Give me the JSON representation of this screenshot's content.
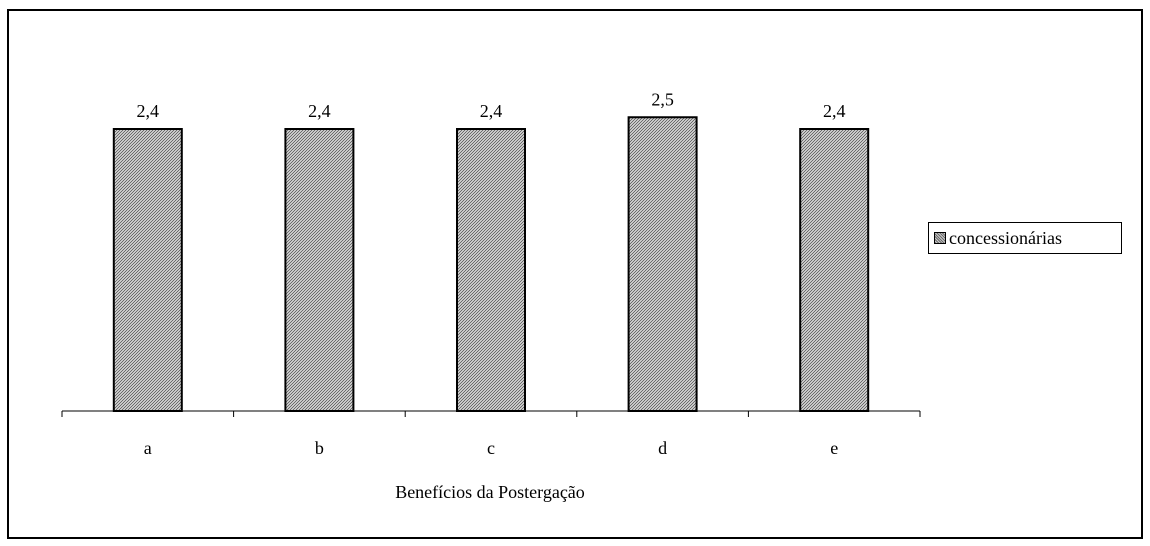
{
  "chart_data": {
    "type": "bar",
    "categories": [
      "a",
      "b",
      "c",
      "d",
      "e"
    ],
    "series": [
      {
        "name": "concessionárias",
        "values": [
          2.4,
          2.4,
          2.4,
          2.5,
          2.4
        ]
      }
    ],
    "data_labels": [
      "2,4",
      "2,4",
      "2,4",
      "2,5",
      "2,4"
    ],
    "title": "",
    "xlabel": "Benefícios da Postergação",
    "ylabel": "",
    "ylim": [
      0,
      2.6
    ],
    "grid": false,
    "legend_position": "right",
    "bar_fill_pattern": "gray-hatched",
    "bar_color": "#9a9a9a"
  }
}
